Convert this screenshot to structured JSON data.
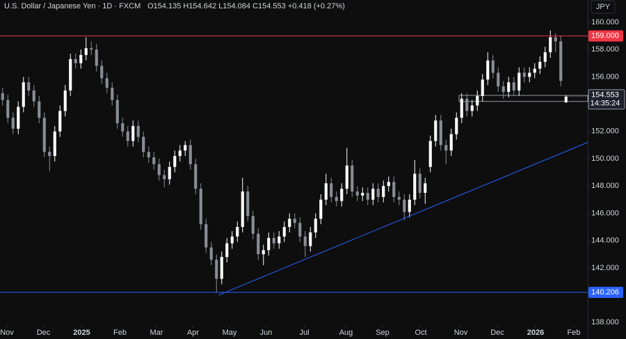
{
  "chart_data": {
    "type": "candlestick",
    "title": "U.S. Dollar / Japanese Yen · 1D · FXCM",
    "legend_text": "O154.135 H154.642 L154.084 C154.553 +0.418 (+0.27%)",
    "currency": "JPY",
    "up_color": "#ffffff",
    "down_color": "#8a8d96",
    "xlim": [
      0,
      338
    ],
    "ylim": [
      137.76,
      161.63
    ],
    "xticks": [
      {
        "value": 4,
        "label": "Nov"
      },
      {
        "value": 25,
        "label": "Dec"
      },
      {
        "value": 47,
        "label": "2025"
      },
      {
        "value": 69,
        "label": "Feb"
      },
      {
        "value": 90,
        "label": "Mar"
      },
      {
        "value": 111,
        "label": "Apr"
      },
      {
        "value": 132,
        "label": "May"
      },
      {
        "value": 153,
        "label": "Jun"
      },
      {
        "value": 175,
        "label": "Jul"
      },
      {
        "value": 199,
        "label": "Aug"
      },
      {
        "value": 220,
        "label": "Sep"
      },
      {
        "value": 242,
        "label": "Oct"
      },
      {
        "value": 265,
        "label": "Nov"
      },
      {
        "value": 286,
        "label": "Dec"
      },
      {
        "value": 308,
        "label": "2026"
      },
      {
        "value": 330,
        "label": "Feb"
      }
    ],
    "yticks": [
      {
        "value": 138,
        "label": "138.000"
      },
      {
        "value": 142,
        "label": "142.000"
      },
      {
        "value": 144,
        "label": "144.000"
      },
      {
        "value": 146,
        "label": "146.000"
      },
      {
        "value": 148,
        "label": "148.000"
      },
      {
        "value": 150,
        "label": "150.000"
      },
      {
        "value": 152,
        "label": "152.000"
      },
      {
        "value": 156,
        "label": "156.000"
      },
      {
        "value": 158,
        "label": "158.000"
      },
      {
        "value": 160,
        "label": "160.000"
      }
    ],
    "hlines": [
      {
        "value": 159,
        "label": "159.000",
        "color": "#f23645"
      },
      {
        "value": 140.206,
        "label": "140.206",
        "color": "#2962ff"
      }
    ],
    "trendline": {
      "x": [
        125.6,
        338
      ],
      "y": [
        140.0,
        151.2
      ],
      "color": "#2962ff"
    },
    "box": {
      "xlim": [
        264,
        338
      ],
      "ylim": [
        154.2,
        154.64
      ]
    },
    "last_price": 154.553,
    "countdown": "14:35:24",
    "x": [
      1.5,
      4.5,
      7.5,
      10.5,
      13.5,
      16.5,
      19.5,
      22.5,
      25.5,
      28.5,
      31.5,
      34.5,
      37.5,
      40.5,
      43.5,
      46.5,
      49.5,
      52.5,
      55.5,
      58.5,
      61.5,
      64.5,
      67.5,
      70.5,
      73.5,
      76.5,
      79.5,
      82.5,
      85.5,
      88.5,
      91.5,
      94.5,
      97.5,
      100.5,
      103.5,
      106.5,
      109.5,
      112.5,
      115.5,
      118.5,
      121.5,
      124.5,
      127.5,
      130.5,
      133.5,
      136.5,
      139.5,
      142.5,
      145.5,
      148.5,
      151.5,
      154.5,
      157.5,
      160.5,
      163.5,
      166.5,
      169.5,
      172.5,
      175.5,
      178.5,
      181.5,
      184.5,
      187.5,
      190.5,
      193.5,
      196.5,
      199.5,
      202.5,
      205.5,
      208.5,
      211.5,
      214.5,
      217.5,
      220.5,
      223.5,
      226.5,
      229.5,
      232.5,
      235.5,
      238.5,
      241.5,
      244.5,
      247.5,
      250.5,
      253.5,
      256.5,
      259.5,
      262.5,
      265.5,
      268.5,
      271.5,
      274.5,
      277.5,
      280.5,
      283.5,
      286.5,
      289.5,
      292.5,
      295.5,
      298.5,
      301.5,
      304.5,
      307.5,
      310.5,
      313.5,
      316.5,
      319.5,
      322.5,
      325.5
    ],
    "candles": [
      [
        154.8,
        155.2,
        153.9,
        154.3
      ],
      [
        154.3,
        154.7,
        152.6,
        153.0
      ],
      [
        153.0,
        153.4,
        151.8,
        152.2
      ],
      [
        152.2,
        154.2,
        151.8,
        153.8
      ],
      [
        153.8,
        156.0,
        153.4,
        155.6
      ],
      [
        155.6,
        156.0,
        154.6,
        155.0
      ],
      [
        155.0,
        155.4,
        153.8,
        154.2
      ],
      [
        154.2,
        154.6,
        152.6,
        153.0
      ],
      [
        153.0,
        153.4,
        150.1,
        150.5
      ],
      [
        150.5,
        150.9,
        149.1,
        150.2
      ],
      [
        150.2,
        152.4,
        149.8,
        152.0
      ],
      [
        152.0,
        153.9,
        151.6,
        153.5
      ],
      [
        153.5,
        155.4,
        153.1,
        155.0
      ],
      [
        155.0,
        157.7,
        154.6,
        157.3
      ],
      [
        157.3,
        157.7,
        156.6,
        157.0
      ],
      [
        157.0,
        158.0,
        156.6,
        157.6
      ],
      [
        157.6,
        158.9,
        157.2,
        158.1
      ],
      [
        158.1,
        158.6,
        157.6,
        158.0
      ],
      [
        158.0,
        158.4,
        156.4,
        156.8
      ],
      [
        156.8,
        157.2,
        155.5,
        155.9
      ],
      [
        155.9,
        156.3,
        154.8,
        155.2
      ],
      [
        155.2,
        155.6,
        153.9,
        154.3
      ],
      [
        154.3,
        154.7,
        152.2,
        152.6
      ],
      [
        152.6,
        153.0,
        151.6,
        152.0
      ],
      [
        152.0,
        152.4,
        150.9,
        151.3
      ],
      [
        151.3,
        152.8,
        150.9,
        152.4
      ],
      [
        152.4,
        152.8,
        151.2,
        151.6
      ],
      [
        151.6,
        152.0,
        150.1,
        150.5
      ],
      [
        150.5,
        150.9,
        149.7,
        150.1
      ],
      [
        150.1,
        150.5,
        149.2,
        149.6
      ],
      [
        149.6,
        150.0,
        148.4,
        148.8
      ],
      [
        148.8,
        149.2,
        147.9,
        148.5
      ],
      [
        148.5,
        149.8,
        148.1,
        149.4
      ],
      [
        149.4,
        150.6,
        149.0,
        150.2
      ],
      [
        150.2,
        151.0,
        149.8,
        150.6
      ],
      [
        150.6,
        151.3,
        150.2,
        151.0
      ],
      [
        151.0,
        151.4,
        149.2,
        149.6
      ],
      [
        149.6,
        150.0,
        147.4,
        147.8
      ],
      [
        147.8,
        148.2,
        144.8,
        145.2
      ],
      [
        145.2,
        145.6,
        143.1,
        143.5
      ],
      [
        143.5,
        143.9,
        142.2,
        142.6
      ],
      [
        142.6,
        143.0,
        140.2,
        141.2
      ],
      [
        141.2,
        143.2,
        140.8,
        142.8
      ],
      [
        142.8,
        144.2,
        142.4,
        143.8
      ],
      [
        143.8,
        144.7,
        143.4,
        144.3
      ],
      [
        144.3,
        145.4,
        143.9,
        145.0
      ],
      [
        145.0,
        148.6,
        144.6,
        147.6
      ],
      [
        147.6,
        148.0,
        145.4,
        145.8
      ],
      [
        145.8,
        146.2,
        144.1,
        144.5
      ],
      [
        144.5,
        144.9,
        142.6,
        143.0
      ],
      [
        143.0,
        143.7,
        142.2,
        143.3
      ],
      [
        143.3,
        144.6,
        142.9,
        144.2
      ],
      [
        144.2,
        144.6,
        143.4,
        143.8
      ],
      [
        143.8,
        144.7,
        143.4,
        144.3
      ],
      [
        144.3,
        145.4,
        143.9,
        145.0
      ],
      [
        145.0,
        146.0,
        144.6,
        145.6
      ],
      [
        145.6,
        146.0,
        144.9,
        145.3
      ],
      [
        145.3,
        145.7,
        143.9,
        144.3
      ],
      [
        144.3,
        144.7,
        142.8,
        143.6
      ],
      [
        143.6,
        145.0,
        143.2,
        144.6
      ],
      [
        144.6,
        146.0,
        144.2,
        145.6
      ],
      [
        145.6,
        147.4,
        145.2,
        147.0
      ],
      [
        147.0,
        148.9,
        146.6,
        148.2
      ],
      [
        148.2,
        148.6,
        146.8,
        147.2
      ],
      [
        147.2,
        147.6,
        146.5,
        146.9
      ],
      [
        146.9,
        148.2,
        146.5,
        147.8
      ],
      [
        147.8,
        150.8,
        147.4,
        149.5
      ],
      [
        149.5,
        149.9,
        147.2,
        147.6
      ],
      [
        147.6,
        148.0,
        146.9,
        147.3
      ],
      [
        147.3,
        147.9,
        146.9,
        147.5
      ],
      [
        147.5,
        147.9,
        146.6,
        147.0
      ],
      [
        147.0,
        148.2,
        146.6,
        147.8
      ],
      [
        147.8,
        148.2,
        146.8,
        147.2
      ],
      [
        147.2,
        148.4,
        146.8,
        148.0
      ],
      [
        148.0,
        148.7,
        147.6,
        148.3
      ],
      [
        148.3,
        148.7,
        146.8,
        147.2
      ],
      [
        147.2,
        147.6,
        146.6,
        147.0
      ],
      [
        147.0,
        147.4,
        145.5,
        146.1
      ],
      [
        146.1,
        147.4,
        145.7,
        147.0
      ],
      [
        147.0,
        149.9,
        146.6,
        148.9
      ],
      [
        148.9,
        149.3,
        147.1,
        147.5
      ],
      [
        147.5,
        148.6,
        146.7,
        148.2
      ],
      [
        149.4,
        151.7,
        149.0,
        151.3
      ],
      [
        151.3,
        153.2,
        150.9,
        152.8
      ],
      [
        152.8,
        153.2,
        150.6,
        151.0
      ],
      [
        151.0,
        151.4,
        149.6,
        150.6
      ],
      [
        150.6,
        152.2,
        150.2,
        151.8
      ],
      [
        151.8,
        153.4,
        151.4,
        153.0
      ],
      [
        153.0,
        154.8,
        152.6,
        154.4
      ],
      [
        154.4,
        154.8,
        153.1,
        153.5
      ],
      [
        153.5,
        154.3,
        153.1,
        153.9
      ],
      [
        153.9,
        155.0,
        153.5,
        154.6
      ],
      [
        154.6,
        156.2,
        154.2,
        155.8
      ],
      [
        155.8,
        157.8,
        155.4,
        157.2
      ],
      [
        157.2,
        157.6,
        155.9,
        156.3
      ],
      [
        156.3,
        156.7,
        154.9,
        155.3
      ],
      [
        155.3,
        155.7,
        154.4,
        154.9
      ],
      [
        154.9,
        156.0,
        154.5,
        155.6
      ],
      [
        155.6,
        156.0,
        154.6,
        155.0
      ],
      [
        155.0,
        156.7,
        154.6,
        156.3
      ],
      [
        156.3,
        156.7,
        155.6,
        156.0
      ],
      [
        156.0,
        156.7,
        155.6,
        156.3
      ],
      [
        156.3,
        157.0,
        155.9,
        156.6
      ],
      [
        156.6,
        157.5,
        156.2,
        157.1
      ],
      [
        157.1,
        158.2,
        156.7,
        157.8
      ],
      [
        157.8,
        159.4,
        157.4,
        158.9
      ],
      [
        158.9,
        159.2,
        157.8,
        158.6
      ],
      [
        158.6,
        159.0,
        155.3,
        155.7
      ],
      [
        154.135,
        154.642,
        154.084,
        154.553
      ]
    ]
  }
}
